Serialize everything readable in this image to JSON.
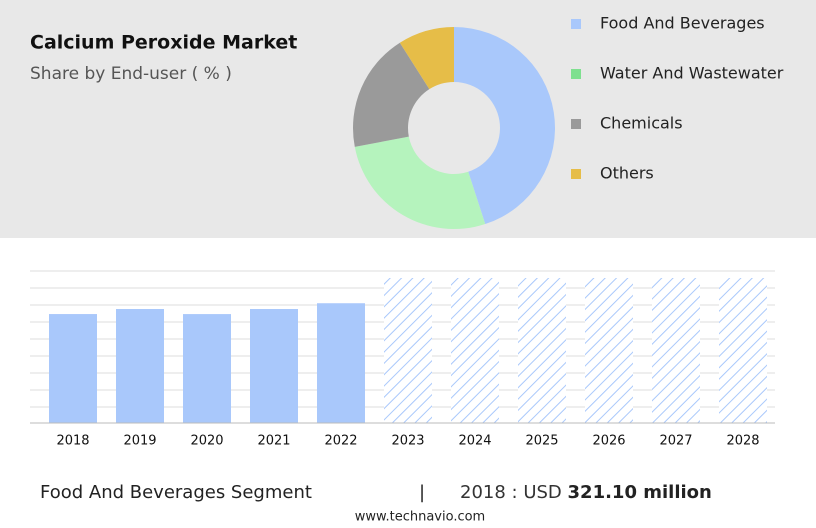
{
  "chart_data": [
    {
      "type": "donut",
      "title": "Calcium Peroxide Market",
      "subtitle": "Share by End-user ( % )",
      "categories": [
        "Food And Beverages",
        "Water And Wastewater",
        "Chemicals",
        "Others"
      ],
      "values": [
        45,
        27,
        19,
        9
      ],
      "colors": [
        "#a9c8fb",
        "#7ee08f",
        "#9a9a9a",
        "#e6bd48"
      ],
      "segment_colors": [
        "#a9c8fb",
        "#b5f3bd",
        "#9a9a9a",
        "#e6bd48"
      ]
    },
    {
      "type": "bar",
      "categories": [
        "2018",
        "2019",
        "2020",
        "2021",
        "2022",
        "2023",
        "2024",
        "2025",
        "2026",
        "2027",
        "2028"
      ],
      "values": [
        321.1,
        336,
        321,
        336,
        353,
        null,
        null,
        null,
        null,
        null,
        null
      ],
      "color": "#a9c8fb",
      "ylim": [
        0,
        448
      ]
    }
  ],
  "footer": {
    "segment": "Food And Beverages Segment",
    "separator": "|",
    "year_label": "2018 : USD",
    "value": "321.10 million",
    "website": "www.technavio.com"
  }
}
